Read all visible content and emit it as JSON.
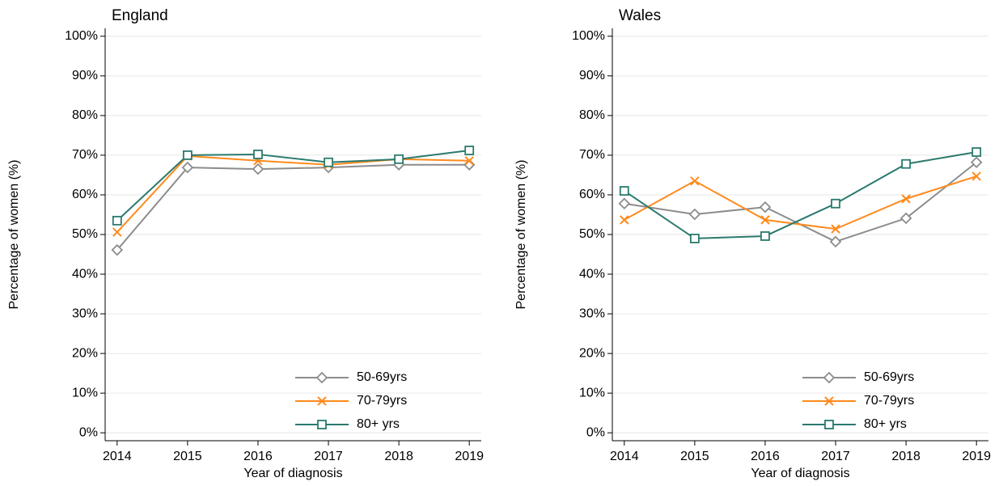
{
  "chart_data": [
    {
      "type": "line",
      "title": "England",
      "xlabel": "Year of diagnosis",
      "ylabel": "Percentage of women (%)",
      "x": [
        2014,
        2015,
        2016,
        2017,
        2018,
        2019
      ],
      "series": [
        {
          "name": "50-69yrs",
          "color": "#8c8c8c",
          "marker": "diamond",
          "values": [
            46.1,
            66.9,
            66.5,
            66.9,
            67.6,
            67.6
          ]
        },
        {
          "name": "70-79yrs",
          "color": "#ff8a1c",
          "marker": "x",
          "values": [
            50.6,
            69.8,
            68.6,
            67.6,
            69.0,
            68.6
          ]
        },
        {
          "name": "80+ yrs",
          "color": "#2a7a6e",
          "marker": "square",
          "values": [
            53.5,
            70.0,
            70.2,
            68.2,
            69.0,
            71.2
          ]
        }
      ],
      "xlim": [
        2013.83,
        2019.17
      ],
      "xticks": [
        2014,
        2015,
        2016,
        2017,
        2018,
        2019
      ],
      "ylim": [
        -2,
        102
      ],
      "yticks": [
        {
          "value": 0,
          "label": "0%"
        },
        {
          "value": 10,
          "label": "10%"
        },
        {
          "value": 20,
          "label": "20%"
        },
        {
          "value": 30,
          "label": "30%"
        },
        {
          "value": 40,
          "label": "40%"
        },
        {
          "value": 50,
          "label": "50%"
        },
        {
          "value": 60,
          "label": "60%"
        },
        {
          "value": 70,
          "label": "70%"
        },
        {
          "value": 80,
          "label": "80%"
        },
        {
          "value": 90,
          "label": "90%"
        },
        {
          "value": 100,
          "label": "100%"
        }
      ],
      "grid": true,
      "legend": "lower right"
    },
    {
      "type": "line",
      "title": "Wales",
      "xlabel": "Year of diagnosis",
      "ylabel": "Percentage of women (%)",
      "x": [
        2014,
        2015,
        2016,
        2017,
        2018,
        2019
      ],
      "series": [
        {
          "name": "50-69yrs",
          "color": "#8c8c8c",
          "marker": "diamond",
          "values": [
            57.8,
            55.1,
            56.9,
            48.2,
            54.1,
            68.2
          ]
        },
        {
          "name": "70-79yrs",
          "color": "#ff8a1c",
          "marker": "x",
          "values": [
            53.7,
            63.5,
            53.7,
            51.4,
            59.0,
            64.7
          ]
        },
        {
          "name": "80+ yrs",
          "color": "#2a7a6e",
          "marker": "square",
          "values": [
            61.0,
            49.0,
            49.6,
            57.8,
            67.8,
            70.8
          ]
        }
      ],
      "xlim": [
        2013.83,
        2019.17
      ],
      "xticks": [
        2014,
        2015,
        2016,
        2017,
        2018,
        2019
      ],
      "ylim": [
        -2,
        102
      ],
      "yticks": [
        {
          "value": 0,
          "label": "0%"
        },
        {
          "value": 10,
          "label": "10%"
        },
        {
          "value": 20,
          "label": "20%"
        },
        {
          "value": 30,
          "label": "30%"
        },
        {
          "value": 40,
          "label": "40%"
        },
        {
          "value": 50,
          "label": "50%"
        },
        {
          "value": 60,
          "label": "60%"
        },
        {
          "value": 70,
          "label": "70%"
        },
        {
          "value": 80,
          "label": "80%"
        },
        {
          "value": 90,
          "label": "90%"
        },
        {
          "value": 100,
          "label": "100%"
        }
      ],
      "grid": true,
      "legend": "lower right"
    }
  ]
}
